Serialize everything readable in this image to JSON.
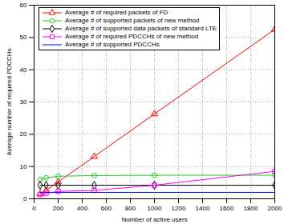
{
  "chart_data": {
    "type": "line",
    "x_label": "Number of active users",
    "y_label": "Average number of required PDCCHs",
    "x": [
      50,
      100,
      200,
      500,
      1000,
      2000
    ],
    "series": [
      {
        "name": "Average # of required packets of FD",
        "color": "#ff0000",
        "marker": "triangle",
        "line_style": "solid",
        "values": [
          1.5,
          2.6,
          5.2,
          13.1,
          26.3,
          52.5
        ]
      },
      {
        "name": "Average # of supported packets of new method",
        "color": "#22cc22",
        "marker": "circle",
        "line_style": "solid",
        "values": [
          6.0,
          6.5,
          7.0,
          7.2,
          7.3,
          7.3
        ]
      },
      {
        "name": "Average # of supported data packets of standard LTE",
        "color": "#000000",
        "marker": "diamond",
        "line_style": "solid",
        "values": [
          4.2,
          4.2,
          4.2,
          4.2,
          4.2,
          4.2
        ]
      },
      {
        "name": "Average # of required PDCCHs of new method",
        "color": "#ff00ff",
        "marker": "square",
        "line_style": "solid",
        "values": [
          1.3,
          1.7,
          2.3,
          2.6,
          4.2,
          8.5
        ]
      },
      {
        "name": "Average # of supported PDCCHs",
        "color": "#0000ff",
        "marker": "none",
        "line_style": "solid",
        "values": [
          2,
          2,
          2,
          2,
          2,
          2
        ]
      }
    ],
    "xlim": [
      0,
      2000
    ],
    "xticks": [
      0,
      200,
      400,
      600,
      800,
      1000,
      1200,
      1400,
      1600,
      1800,
      2000
    ],
    "ylim": [
      0,
      60
    ],
    "yticks": [
      0,
      10,
      20,
      30,
      40,
      50,
      60
    ],
    "grid": true,
    "legend": "top-left"
  }
}
